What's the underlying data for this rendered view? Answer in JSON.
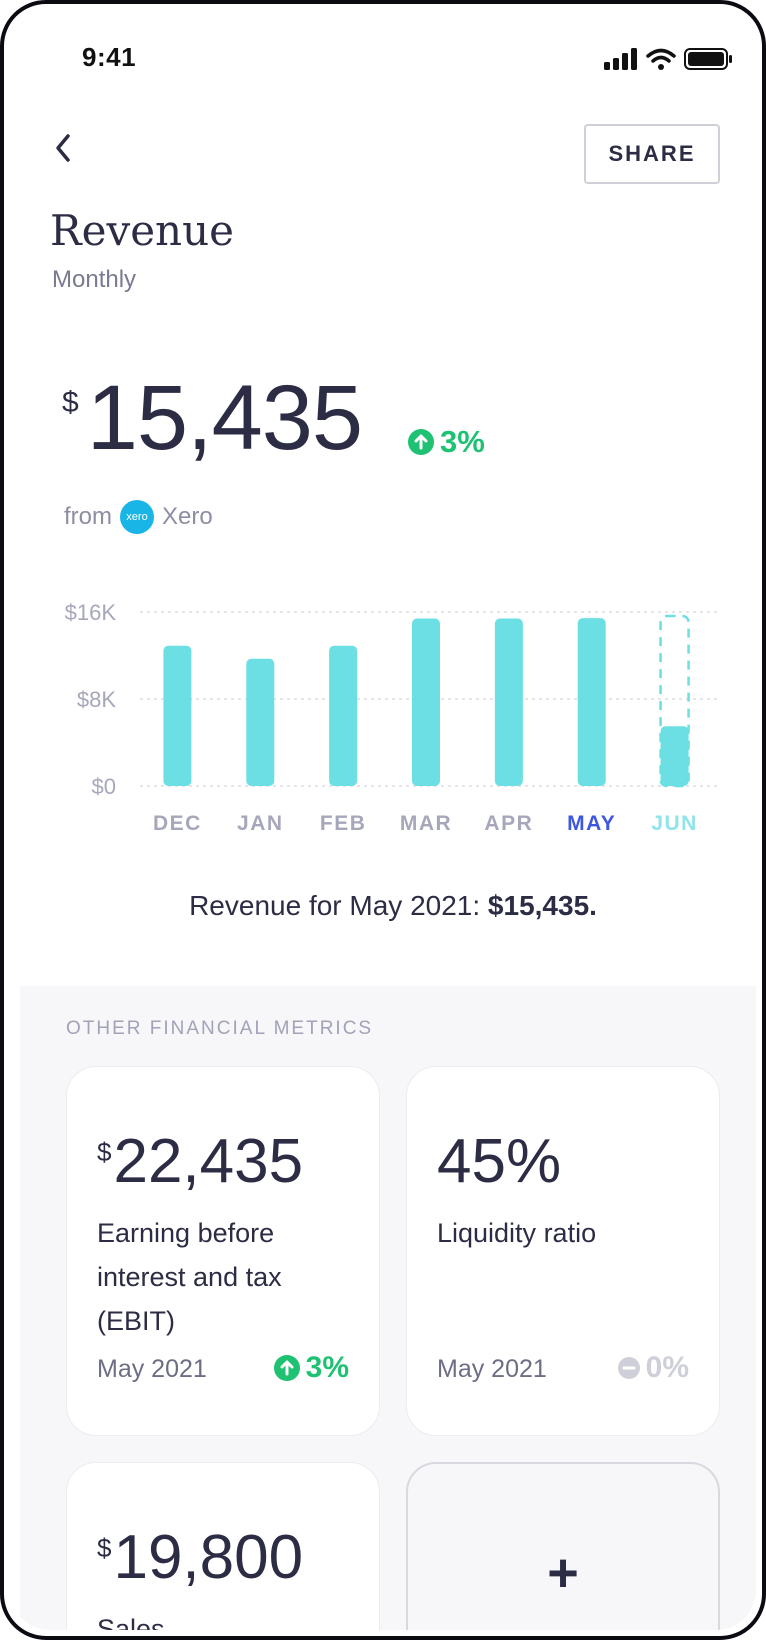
{
  "status_bar": {
    "time": "9:41"
  },
  "header": {
    "share_label": "SHARE"
  },
  "page": {
    "title": "Revenue",
    "subtitle": "Monthly"
  },
  "headline": {
    "currency": "$",
    "value": "15,435",
    "change": "3%",
    "source_prefix": "from",
    "source_name": "Xero",
    "source_logo_text": "xero"
  },
  "chart_data": {
    "type": "bar",
    "categories": [
      "DEC",
      "JAN",
      "FEB",
      "MAR",
      "APR",
      "MAY",
      "JUN"
    ],
    "values": [
      12900,
      11700,
      12900,
      15400,
      15400,
      15435,
      5500
    ],
    "projected": [
      null,
      null,
      null,
      null,
      null,
      null,
      16000
    ],
    "selected": "MAY",
    "ylim": [
      0,
      16000
    ],
    "y_ticks": [
      {
        "value": 16000,
        "label": "$16K"
      },
      {
        "value": 8000,
        "label": "$8K"
      },
      {
        "value": 0,
        "label": "$0"
      }
    ],
    "colors": {
      "bar": "#6bdfe3",
      "selected_label": "#3d57e0",
      "label": "#a7a7bc",
      "future_label": "#8fe4e8",
      "grid": "#dcdce4"
    }
  },
  "caption": {
    "prefix": "Revenue for May 2021: ",
    "value": "$15,435."
  },
  "metrics": {
    "heading": "OTHER FINANCIAL METRICS",
    "cards": [
      {
        "currency": "$",
        "value": "22,435",
        "label": "Earning before interest and tax (EBIT)",
        "date": "May 2021",
        "change": "3%",
        "change_color": "#1ec272"
      },
      {
        "currency": "",
        "value": "45%",
        "label": "Liquidity ratio",
        "date": "May 2021",
        "change": "0%",
        "change_color": "#cfcfd9"
      },
      {
        "currency": "$",
        "value": "19,800",
        "label": "Sales"
      }
    ],
    "add_label": "+"
  },
  "colors": {
    "accent_green": "#1ec272",
    "text_dark": "#2c2c45",
    "chart_bar": "#6bdfe3"
  }
}
